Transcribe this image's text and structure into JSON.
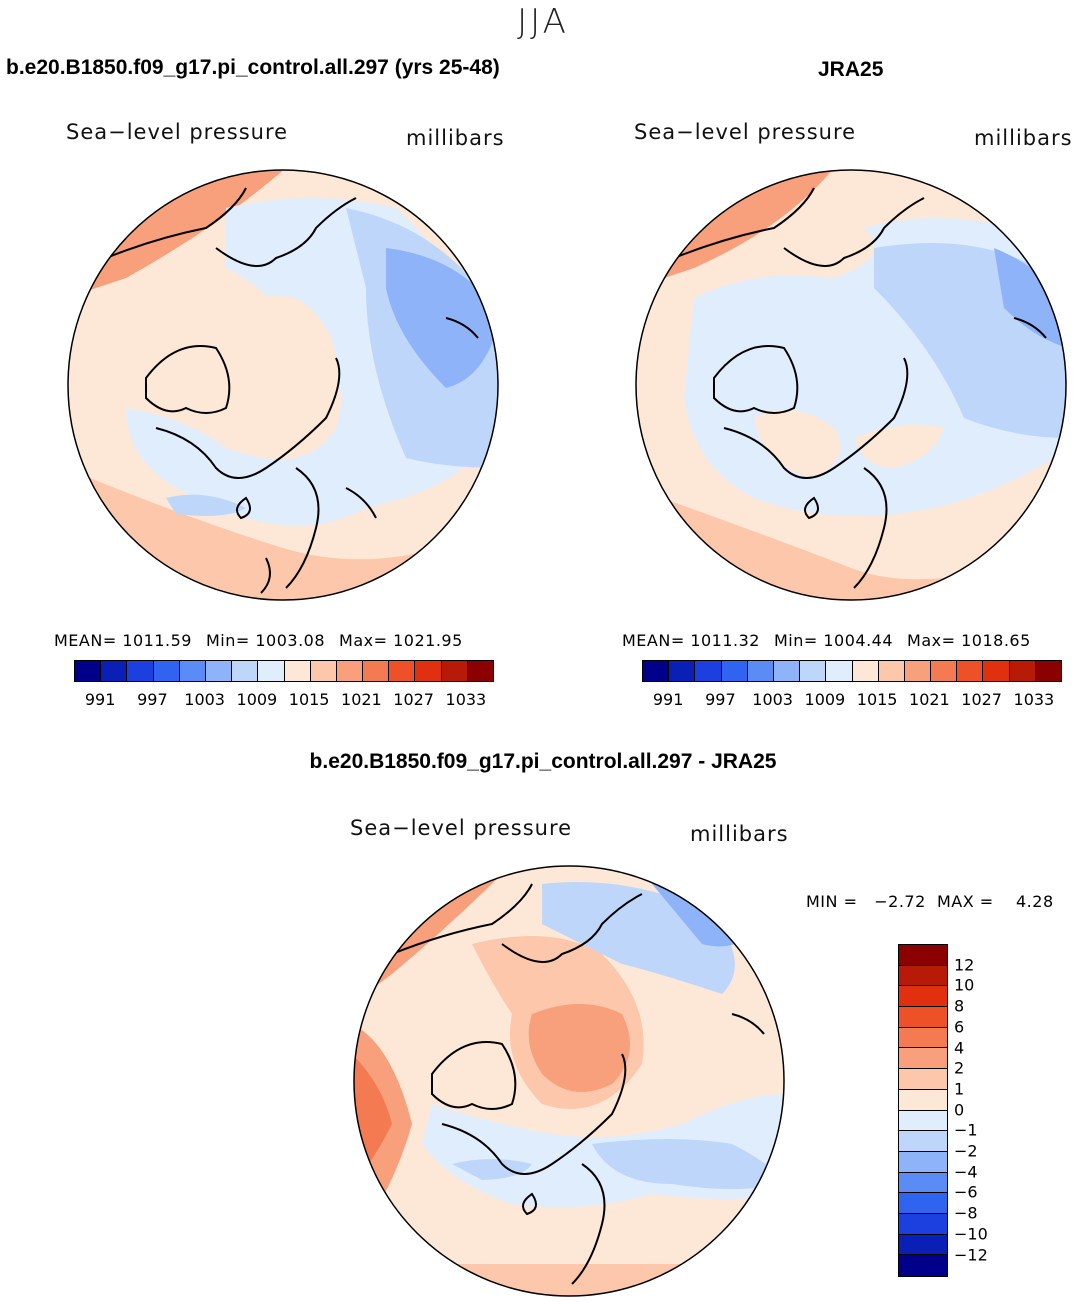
{
  "figure": {
    "season": "JJA"
  },
  "left_panel": {
    "title": "b.e20.B1850.f09_g17.pi_control.all.297 (yrs 25-48)",
    "variable": "Sea−level pressure",
    "units": "millibars",
    "stats": {
      "mean": "MEAN=  1011.59",
      "min": "Min=  1003.08",
      "max": "Max=  1021.95"
    }
  },
  "right_panel": {
    "title": "JRA25",
    "variable": "Sea−level pressure",
    "units": "millibars",
    "stats": {
      "mean": "MEAN=  1011.32",
      "min": "Min=  1004.44",
      "max": "Max=  1018.65"
    }
  },
  "diff_panel": {
    "title": "b.e20.B1850.f09_g17.pi_control.all.297 - JRA25",
    "variable": "Sea−level pressure",
    "units": "millibars",
    "minmax": "MIN =   −2.72  MAX =    4.28"
  },
  "abs_colorbar": {
    "labels": [
      "991",
      "997",
      "1003",
      "1009",
      "1015",
      "1021",
      "1027",
      "1033"
    ],
    "colors": [
      "#00008b",
      "#0a1fb5",
      "#1c3fe0",
      "#2f63f0",
      "#5b8cf5",
      "#8fb3f8",
      "#bfd6fb",
      "#e0edfd",
      "#fde8d8",
      "#fcc7aa",
      "#f8a07c",
      "#f47a52",
      "#ee5128",
      "#e03010",
      "#b81a08",
      "#8b0000"
    ]
  },
  "diff_colorbar": {
    "labels": [
      "12",
      "10",
      "8",
      "6",
      "4",
      "2",
      "1",
      "0",
      "−1",
      "−2",
      "−4",
      "−6",
      "−8",
      "−10",
      "−12"
    ],
    "colors": [
      "#8b0000",
      "#b81a08",
      "#e03010",
      "#ee5128",
      "#f47a52",
      "#f8a07c",
      "#fcc7aa",
      "#fde8d8",
      "#e0edfd",
      "#bfd6fb",
      "#8fb3f8",
      "#5b8cf5",
      "#2f63f0",
      "#1c3fe0",
      "#0a1fb5",
      "#00008b"
    ]
  },
  "map_colors": {
    "land_outline": "#000000",
    "neutral_warm": "#fde8d8",
    "light_warm": "#fcc7aa",
    "warm": "#f8a07c",
    "strong_warm": "#f47a52",
    "neutral_cool": "#e0edfd",
    "light_cool": "#bfd6fb",
    "cool": "#8fb3f8",
    "strong_cool": "#5b8cf5"
  }
}
